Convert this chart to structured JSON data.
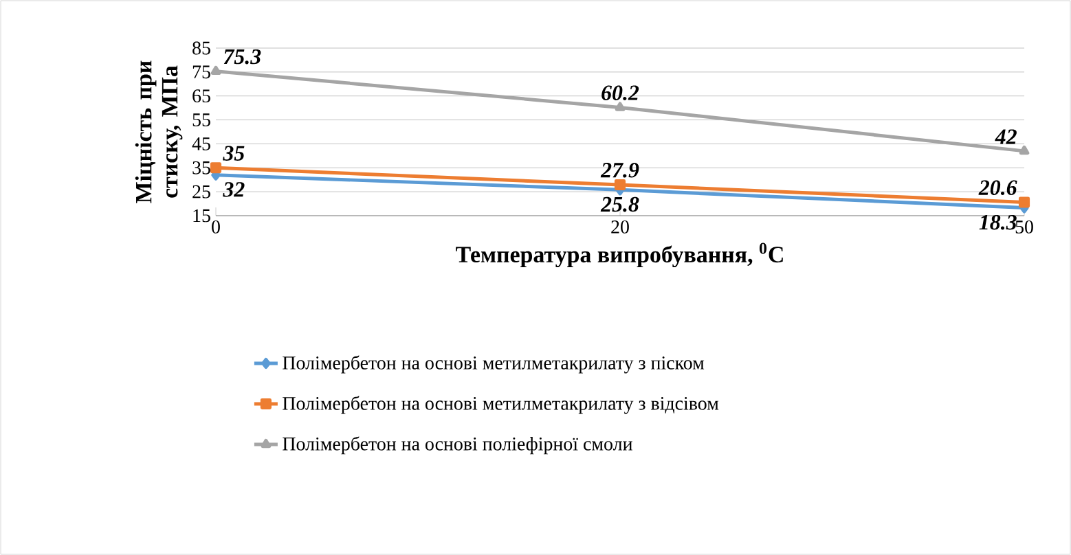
{
  "chart_data": {
    "type": "line",
    "xlabel": "Температура випробування, $^{0}$С",
    "ylabel": "Міцність при стиску, МПа",
    "categories": [
      "0",
      "20",
      "50"
    ],
    "series": [
      {
        "name": "Полімербетон на основі метилметакрилату з піском",
        "color": "#5b9bd5",
        "marker": "diamond",
        "values": [
          32,
          25.8,
          18.3
        ]
      },
      {
        "name": "Полімербетон на основі метилметакрилату з відсівом",
        "color": "#ed7d31",
        "marker": "square",
        "values": [
          35,
          27.9,
          20.6
        ]
      },
      {
        "name": "Полімербетон на основі поліефірної смоли",
        "color": "#a5a5a5",
        "marker": "triangle",
        "values": [
          75.3,
          60.2,
          42
        ]
      }
    ],
    "ylim": [
      15,
      85
    ],
    "yticks": [
      15,
      25,
      35,
      45,
      55,
      65,
      75,
      85
    ],
    "grid": "y",
    "legend": "bottom",
    "data_labels": true
  }
}
